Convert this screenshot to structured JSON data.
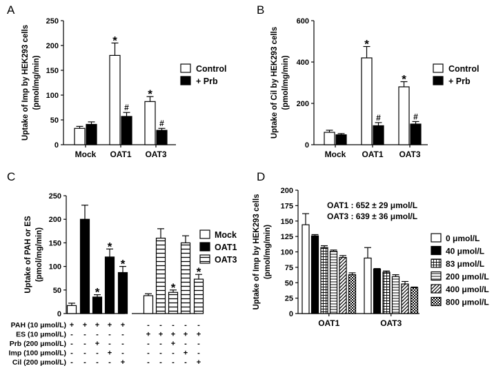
{
  "chart_data": [
    {
      "panel": "A",
      "type": "bar",
      "ylabel_line1": "Uptake of Imp by HEK293 cells",
      "ylabel_line2": "(pmol/mg/min)",
      "ylim": [
        0,
        250
      ],
      "yticks": [
        "0",
        "50",
        "100",
        "150",
        "200",
        "250"
      ],
      "categories": [
        "Mock",
        "OAT1",
        "OAT3"
      ],
      "series": [
        {
          "name": "Control",
          "values": [
            33,
            180,
            87
          ],
          "errors": [
            4,
            25,
            10
          ],
          "marks": [
            "",
            "*",
            "*"
          ]
        },
        {
          "name": "+ Prb",
          "values": [
            41,
            57,
            29
          ],
          "errors": [
            5,
            8,
            4
          ],
          "marks": [
            "",
            "#",
            "#"
          ]
        }
      ]
    },
    {
      "panel": "B",
      "type": "bar",
      "ylabel_line1": "Uptake of Cil by HEK293 cells",
      "ylabel_line2": "(pmol/mg/min)",
      "ylim": [
        0,
        600
      ],
      "yticks": [
        "0",
        "200",
        "400",
        "600"
      ],
      "categories": [
        "Mock",
        "OAT1",
        "OAT3"
      ],
      "series": [
        {
          "name": "Control",
          "values": [
            60,
            420,
            280
          ],
          "errors": [
            10,
            55,
            25
          ],
          "marks": [
            "",
            "*",
            "*"
          ]
        },
        {
          "name": "+ Prb",
          "values": [
            48,
            92,
            100
          ],
          "errors": [
            6,
            15,
            12
          ],
          "marks": [
            "",
            "#",
            "#"
          ]
        }
      ]
    },
    {
      "panel": "C",
      "type": "bar",
      "ylabel_line1": "Uptake of PAH or ES",
      "ylabel_line2": "(pmol/mg/min)",
      "ylim": [
        0,
        250
      ],
      "yticks": [
        "0",
        "50",
        "100",
        "150",
        "200",
        "250"
      ],
      "legend": [
        "Mock",
        "OAT1",
        "OAT3"
      ],
      "bars": [
        {
          "series": "Mock",
          "value": 17,
          "error": 5,
          "mark": ""
        },
        {
          "series": "OAT1",
          "value": 200,
          "error": 30,
          "mark": ""
        },
        {
          "series": "OAT1",
          "value": 35,
          "error": 5,
          "mark": "*"
        },
        {
          "series": "OAT1",
          "value": 120,
          "error": 17,
          "mark": "*"
        },
        {
          "series": "OAT1",
          "value": 87,
          "error": 13,
          "mark": "*"
        },
        {
          "series": "Mock",
          "value": 38,
          "error": 4,
          "mark": ""
        },
        {
          "series": "OAT3",
          "value": 160,
          "error": 20,
          "mark": ""
        },
        {
          "series": "OAT3",
          "value": 45,
          "error": 5,
          "mark": "*"
        },
        {
          "series": "OAT3",
          "value": 150,
          "error": 15,
          "mark": ""
        },
        {
          "series": "OAT3",
          "value": 73,
          "error": 10,
          "mark": "*"
        }
      ],
      "conditions": [
        {
          "label": "PAH (10 μmol/L)",
          "signs": [
            "+",
            "+",
            "+",
            "+",
            "+",
            "-",
            "-",
            "-",
            "-",
            "-"
          ]
        },
        {
          "label": "ES (10 μmol/L)",
          "signs": [
            "-",
            "-",
            "-",
            "-",
            "-",
            "+",
            "+",
            "+",
            "+",
            "+"
          ]
        },
        {
          "label": "Prb (200 μmol/L)",
          "signs": [
            "-",
            "-",
            "+",
            "-",
            "-",
            "-",
            "-",
            "+",
            "-",
            "-"
          ]
        },
        {
          "label": "Imp (100 μmol/L)",
          "signs": [
            "-",
            "-",
            "-",
            "+",
            "-",
            "-",
            "-",
            "-",
            "+",
            "-"
          ]
        },
        {
          "label": "Cil (200 μmol/L)",
          "signs": [
            "-",
            "-",
            "-",
            "-",
            "+",
            "-",
            "-",
            "-",
            "-",
            "+"
          ]
        }
      ]
    },
    {
      "panel": "D",
      "type": "bar",
      "ylabel_line1": "Uptake of Imp by HEK293 cells",
      "ylabel_line2": "(pmol/mg/min)",
      "ylim": [
        0,
        200
      ],
      "yticks": [
        "0",
        "25",
        "50",
        "75",
        "100",
        "125",
        "150",
        "175",
        "200"
      ],
      "categories": [
        "OAT1",
        "OAT3"
      ],
      "annotations": [
        "OAT1 : 652 ± 29 μmol/L",
        "OAT3 : 639 ± 36 μmol/L"
      ],
      "series": [
        {
          "name": "0 μmol/L",
          "values": [
            144,
            90
          ],
          "errors": [
            18,
            17
          ]
        },
        {
          "name": "40 μmol/L",
          "values": [
            126,
            72
          ],
          "errors": [
            2,
            1
          ]
        },
        {
          "name": "83 μmol/L",
          "values": [
            107,
            67
          ],
          "errors": [
            3,
            2
          ]
        },
        {
          "name": "200 μmol/L",
          "values": [
            101,
            60
          ],
          "errors": [
            2,
            3
          ]
        },
        {
          "name": "400 μmol/L",
          "values": [
            91,
            48
          ],
          "errors": [
            3,
            4
          ]
        },
        {
          "name": "800 μmol/L",
          "values": [
            63,
            42
          ],
          "errors": [
            3,
            1
          ]
        }
      ]
    }
  ]
}
